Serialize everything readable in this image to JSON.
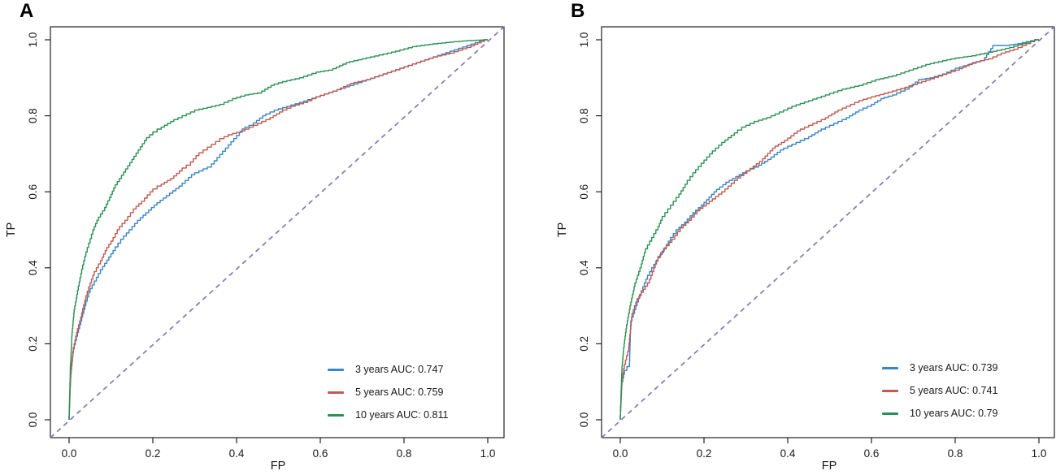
{
  "figure": {
    "background": "#ffffff",
    "text_color": "#1a1a1a",
    "axis_color": "#222222",
    "reference_line_color": "#807BB3"
  },
  "chart_data": [
    {
      "type": "line",
      "panel_label": "A",
      "title": "",
      "xlabel": "FP",
      "ylabel": "TP",
      "xlim": [
        0,
        1
      ],
      "ylim": [
        0,
        1
      ],
      "x_tick_values": [
        0,
        0.2,
        0.4,
        0.6,
        0.8,
        1.0
      ],
      "y_tick_values": [
        0,
        0.2,
        0.4,
        0.6,
        0.8,
        1.0
      ],
      "x_tick_labels": [
        "0.0",
        "0.2",
        "0.4",
        "0.6",
        "0.8",
        "1.0"
      ],
      "y_tick_labels": [
        "0.0",
        "0.2",
        "0.4",
        "0.6",
        "0.8",
        "1.0"
      ],
      "grid": false,
      "legend_position": "bottom-right",
      "reference_line": {
        "type": "diagonal",
        "style": "dashed",
        "color": "#807BB3"
      },
      "series": [
        {
          "name": "3 years",
          "auc": 0.747,
          "label": "3 years AUC: 0.747",
          "color": "#3A85C3",
          "points": [
            [
              0,
              0
            ],
            [
              0.004,
              0.11
            ],
            [
              0.01,
              0.175
            ],
            [
              0.02,
              0.22
            ],
            [
              0.03,
              0.26
            ],
            [
              0.04,
              0.3
            ],
            [
              0.05,
              0.335
            ],
            [
              0.065,
              0.365
            ],
            [
              0.08,
              0.395
            ],
            [
              0.095,
              0.42
            ],
            [
              0.11,
              0.445
            ],
            [
              0.13,
              0.475
            ],
            [
              0.15,
              0.5
            ],
            [
              0.17,
              0.525
            ],
            [
              0.19,
              0.545
            ],
            [
              0.21,
              0.565
            ],
            [
              0.24,
              0.59
            ],
            [
              0.27,
              0.615
            ],
            [
              0.3,
              0.645
            ],
            [
              0.32,
              0.655
            ],
            [
              0.34,
              0.665
            ],
            [
              0.36,
              0.69
            ],
            [
              0.38,
              0.715
            ],
            [
              0.4,
              0.74
            ],
            [
              0.42,
              0.765
            ],
            [
              0.44,
              0.775
            ],
            [
              0.47,
              0.8
            ],
            [
              0.5,
              0.815
            ],
            [
              0.53,
              0.825
            ],
            [
              0.56,
              0.835
            ],
            [
              0.6,
              0.85
            ],
            [
              0.64,
              0.865
            ],
            [
              0.68,
              0.88
            ],
            [
              0.72,
              0.895
            ],
            [
              0.76,
              0.91
            ],
            [
              0.8,
              0.925
            ],
            [
              0.84,
              0.94
            ],
            [
              0.88,
              0.955
            ],
            [
              0.92,
              0.97
            ],
            [
              0.96,
              0.985
            ],
            [
              1,
              1
            ]
          ]
        },
        {
          "name": "5 years",
          "auc": 0.759,
          "label": "5 years AUC: 0.759",
          "color": "#C05B50",
          "points": [
            [
              0,
              0
            ],
            [
              0.004,
              0.12
            ],
            [
              0.01,
              0.18
            ],
            [
              0.02,
              0.23
            ],
            [
              0.03,
              0.27
            ],
            [
              0.04,
              0.315
            ],
            [
              0.05,
              0.35
            ],
            [
              0.06,
              0.38
            ],
            [
              0.075,
              0.41
            ],
            [
              0.09,
              0.445
            ],
            [
              0.105,
              0.47
            ],
            [
              0.12,
              0.5
            ],
            [
              0.14,
              0.525
            ],
            [
              0.16,
              0.555
            ],
            [
              0.18,
              0.575
            ],
            [
              0.2,
              0.6
            ],
            [
              0.22,
              0.615
            ],
            [
              0.25,
              0.635
            ],
            [
              0.27,
              0.655
            ],
            [
              0.29,
              0.67
            ],
            [
              0.31,
              0.695
            ],
            [
              0.33,
              0.71
            ],
            [
              0.35,
              0.725
            ],
            [
              0.37,
              0.74
            ],
            [
              0.39,
              0.75
            ],
            [
              0.42,
              0.76
            ],
            [
              0.45,
              0.775
            ],
            [
              0.48,
              0.79
            ],
            [
              0.51,
              0.81
            ],
            [
              0.54,
              0.825
            ],
            [
              0.57,
              0.835
            ],
            [
              0.6,
              0.85
            ],
            [
              0.64,
              0.865
            ],
            [
              0.68,
              0.885
            ],
            [
              0.72,
              0.895
            ],
            [
              0.76,
              0.91
            ],
            [
              0.8,
              0.925
            ],
            [
              0.84,
              0.94
            ],
            [
              0.88,
              0.955
            ],
            [
              0.92,
              0.965
            ],
            [
              0.96,
              0.98
            ],
            [
              1,
              1
            ]
          ]
        },
        {
          "name": "10 years",
          "auc": 0.811,
          "label": "10 years AUC: 0.811",
          "color": "#2C9156",
          "points": [
            [
              0,
              0
            ],
            [
              0.003,
              0.13
            ],
            [
              0.007,
              0.22
            ],
            [
              0.012,
              0.28
            ],
            [
              0.02,
              0.33
            ],
            [
              0.03,
              0.385
            ],
            [
              0.04,
              0.43
            ],
            [
              0.05,
              0.465
            ],
            [
              0.06,
              0.5
            ],
            [
              0.07,
              0.525
            ],
            [
              0.085,
              0.55
            ],
            [
              0.1,
              0.585
            ],
            [
              0.11,
              0.61
            ],
            [
              0.125,
              0.635
            ],
            [
              0.14,
              0.66
            ],
            [
              0.155,
              0.685
            ],
            [
              0.17,
              0.71
            ],
            [
              0.185,
              0.735
            ],
            [
              0.2,
              0.75
            ],
            [
              0.22,
              0.765
            ],
            [
              0.25,
              0.785
            ],
            [
              0.28,
              0.8
            ],
            [
              0.31,
              0.815
            ],
            [
              0.34,
              0.822
            ],
            [
              0.37,
              0.83
            ],
            [
              0.4,
              0.845
            ],
            [
              0.43,
              0.855
            ],
            [
              0.46,
              0.86
            ],
            [
              0.49,
              0.88
            ],
            [
              0.52,
              0.89
            ],
            [
              0.56,
              0.9
            ],
            [
              0.6,
              0.915
            ],
            [
              0.63,
              0.92
            ],
            [
              0.67,
              0.94
            ],
            [
              0.71,
              0.95
            ],
            [
              0.75,
              0.96
            ],
            [
              0.79,
              0.97
            ],
            [
              0.83,
              0.982
            ],
            [
              0.87,
              0.988
            ],
            [
              0.91,
              0.993
            ],
            [
              0.95,
              0.997
            ],
            [
              1,
              1
            ]
          ]
        }
      ]
    },
    {
      "type": "line",
      "panel_label": "B",
      "title": "",
      "xlabel": "FP",
      "ylabel": "TP",
      "xlim": [
        0,
        1
      ],
      "ylim": [
        0,
        1
      ],
      "x_tick_values": [
        0,
        0.2,
        0.4,
        0.6,
        0.8,
        1.0
      ],
      "y_tick_values": [
        0,
        0.2,
        0.4,
        0.6,
        0.8,
        1.0
      ],
      "x_tick_labels": [
        "0.0",
        "0.2",
        "0.4",
        "0.6",
        "0.8",
        "1.0"
      ],
      "y_tick_labels": [
        "0.0",
        "0.2",
        "0.4",
        "0.6",
        "0.8",
        "1.0"
      ],
      "grid": false,
      "legend_position": "bottom-right",
      "reference_line": {
        "type": "diagonal",
        "style": "dashed",
        "color": "#807BB3"
      },
      "series": [
        {
          "name": "3 years",
          "auc": 0.739,
          "label": "3 years AUC: 0.739",
          "color": "#3A85C3",
          "points": [
            [
              0,
              0
            ],
            [
              0.004,
              0.09
            ],
            [
              0.01,
              0.12
            ],
            [
              0.022,
              0.14
            ],
            [
              0.025,
              0.25
            ],
            [
              0.04,
              0.3
            ],
            [
              0.05,
              0.33
            ],
            [
              0.065,
              0.37
            ],
            [
              0.08,
              0.4
            ],
            [
              0.1,
              0.435
            ],
            [
              0.12,
              0.47
            ],
            [
              0.14,
              0.5
            ],
            [
              0.16,
              0.52
            ],
            [
              0.18,
              0.545
            ],
            [
              0.2,
              0.565
            ],
            [
              0.23,
              0.6
            ],
            [
              0.26,
              0.625
            ],
            [
              0.3,
              0.65
            ],
            [
              0.33,
              0.665
            ],
            [
              0.36,
              0.685
            ],
            [
              0.39,
              0.71
            ],
            [
              0.42,
              0.725
            ],
            [
              0.45,
              0.74
            ],
            [
              0.48,
              0.76
            ],
            [
              0.51,
              0.775
            ],
            [
              0.54,
              0.79
            ],
            [
              0.57,
              0.81
            ],
            [
              0.6,
              0.825
            ],
            [
              0.63,
              0.845
            ],
            [
              0.66,
              0.855
            ],
            [
              0.69,
              0.87
            ],
            [
              0.72,
              0.895
            ],
            [
              0.75,
              0.9
            ],
            [
              0.78,
              0.91
            ],
            [
              0.81,
              0.925
            ],
            [
              0.84,
              0.935
            ],
            [
              0.87,
              0.945
            ],
            [
              0.895,
              0.985
            ],
            [
              0.93,
              0.985
            ],
            [
              0.96,
              0.99
            ],
            [
              1,
              1
            ]
          ]
        },
        {
          "name": "5 years",
          "auc": 0.741,
          "label": "5 years AUC: 0.741",
          "color": "#C05B50",
          "points": [
            [
              0,
              0
            ],
            [
              0.004,
              0.1
            ],
            [
              0.01,
              0.135
            ],
            [
              0.02,
              0.18
            ],
            [
              0.028,
              0.27
            ],
            [
              0.04,
              0.31
            ],
            [
              0.055,
              0.335
            ],
            [
              0.07,
              0.36
            ],
            [
              0.09,
              0.42
            ],
            [
              0.11,
              0.45
            ],
            [
              0.13,
              0.475
            ],
            [
              0.15,
              0.505
            ],
            [
              0.17,
              0.525
            ],
            [
              0.19,
              0.55
            ],
            [
              0.22,
              0.575
            ],
            [
              0.25,
              0.6
            ],
            [
              0.28,
              0.63
            ],
            [
              0.31,
              0.655
            ],
            [
              0.34,
              0.68
            ],
            [
              0.37,
              0.715
            ],
            [
              0.4,
              0.735
            ],
            [
              0.43,
              0.76
            ],
            [
              0.46,
              0.775
            ],
            [
              0.49,
              0.79
            ],
            [
              0.52,
              0.81
            ],
            [
              0.55,
              0.825
            ],
            [
              0.58,
              0.84
            ],
            [
              0.61,
              0.85
            ],
            [
              0.65,
              0.862
            ],
            [
              0.69,
              0.875
            ],
            [
              0.73,
              0.89
            ],
            [
              0.77,
              0.905
            ],
            [
              0.81,
              0.92
            ],
            [
              0.85,
              0.94
            ],
            [
              0.89,
              0.95
            ],
            [
              0.92,
              0.965
            ],
            [
              0.95,
              0.975
            ],
            [
              0.98,
              0.99
            ],
            [
              1,
              1
            ]
          ]
        },
        {
          "name": "10 years",
          "auc": 0.79,
          "label": "10 years AUC: 0.79",
          "color": "#2C9156",
          "points": [
            [
              0,
              0
            ],
            [
              0.004,
              0.13
            ],
            [
              0.008,
              0.18
            ],
            [
              0.015,
              0.24
            ],
            [
              0.025,
              0.3
            ],
            [
              0.035,
              0.35
            ],
            [
              0.05,
              0.4
            ],
            [
              0.06,
              0.44
            ],
            [
              0.075,
              0.47
            ],
            [
              0.09,
              0.5
            ],
            [
              0.1,
              0.525
            ],
            [
              0.12,
              0.555
            ],
            [
              0.14,
              0.585
            ],
            [
              0.16,
              0.62
            ],
            [
              0.18,
              0.65
            ],
            [
              0.2,
              0.675
            ],
            [
              0.22,
              0.7
            ],
            [
              0.25,
              0.73
            ],
            [
              0.28,
              0.755
            ],
            [
              0.3,
              0.77
            ],
            [
              0.33,
              0.785
            ],
            [
              0.36,
              0.795
            ],
            [
              0.39,
              0.81
            ],
            [
              0.42,
              0.825
            ],
            [
              0.46,
              0.84
            ],
            [
              0.5,
              0.855
            ],
            [
              0.54,
              0.87
            ],
            [
              0.58,
              0.88
            ],
            [
              0.62,
              0.895
            ],
            [
              0.66,
              0.905
            ],
            [
              0.7,
              0.92
            ],
            [
              0.74,
              0.935
            ],
            [
              0.78,
              0.945
            ],
            [
              0.81,
              0.952
            ],
            [
              0.85,
              0.958
            ],
            [
              0.88,
              0.965
            ],
            [
              0.91,
              0.972
            ],
            [
              0.94,
              0.98
            ],
            [
              0.97,
              0.99
            ],
            [
              1,
              1
            ]
          ]
        }
      ]
    }
  ]
}
